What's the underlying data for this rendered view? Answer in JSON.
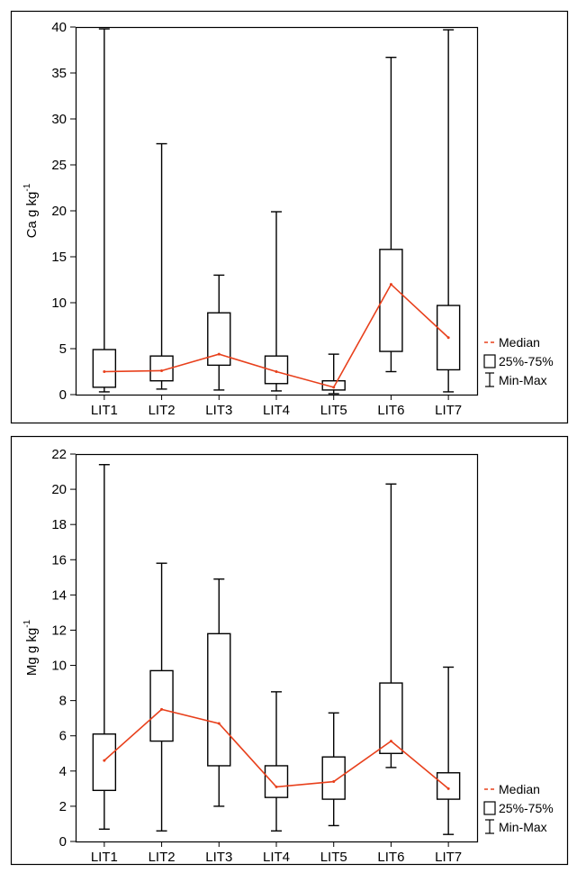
{
  "chart_data": [
    {
      "type": "box",
      "ylabel_main": "Ca g kg",
      "ylabel_sup": "-1",
      "categories": [
        "LIT1",
        "LIT2",
        "LIT3",
        "LIT4",
        "LIT5",
        "LIT6",
        "LIT7"
      ],
      "min": [
        0.3,
        0.6,
        0.5,
        0.4,
        0.1,
        2.5,
        0.3
      ],
      "q1": [
        0.8,
        1.5,
        3.2,
        1.2,
        0.5,
        4.7,
        2.7
      ],
      "median": [
        2.5,
        2.6,
        4.4,
        2.5,
        0.8,
        12.0,
        6.2
      ],
      "q3": [
        4.9,
        4.2,
        8.9,
        4.2,
        1.5,
        15.8,
        9.7
      ],
      "max": [
        39.8,
        27.3,
        13.0,
        19.9,
        4.4,
        36.7,
        39.7
      ],
      "ylim": [
        0,
        40
      ],
      "yticks": [
        0,
        5,
        10,
        15,
        20,
        25,
        30,
        35,
        40
      ],
      "legend": [
        "Median",
        "25%-75%",
        "Min-Max"
      ],
      "legend_position": "bottom-right, outside plot",
      "median_color": "#e8401c"
    },
    {
      "type": "box",
      "ylabel_main": "Mg g kg",
      "ylabel_sup": "-1",
      "categories": [
        "LIT1",
        "LIT2",
        "LIT3",
        "LIT4",
        "LIT5",
        "LIT6",
        "LIT7"
      ],
      "min": [
        0.7,
        0.6,
        2.0,
        0.6,
        0.9,
        4.2,
        0.4
      ],
      "q1": [
        2.9,
        5.7,
        4.3,
        2.5,
        2.4,
        5.0,
        2.4
      ],
      "median": [
        4.6,
        7.5,
        6.7,
        3.1,
        3.4,
        5.7,
        3.0
      ],
      "q3": [
        6.1,
        9.7,
        11.8,
        4.3,
        4.8,
        9.0,
        3.9
      ],
      "max": [
        21.4,
        15.8,
        14.9,
        8.5,
        7.3,
        20.3,
        9.9
      ],
      "ylim": [
        0,
        22
      ],
      "yticks": [
        0,
        2,
        4,
        6,
        8,
        10,
        12,
        14,
        16,
        18,
        20,
        22
      ],
      "legend": [
        "Median",
        "25%-75%",
        "Min-Max"
      ],
      "legend_position": "bottom-right, outside plot",
      "median_color": "#e8401c"
    }
  ]
}
